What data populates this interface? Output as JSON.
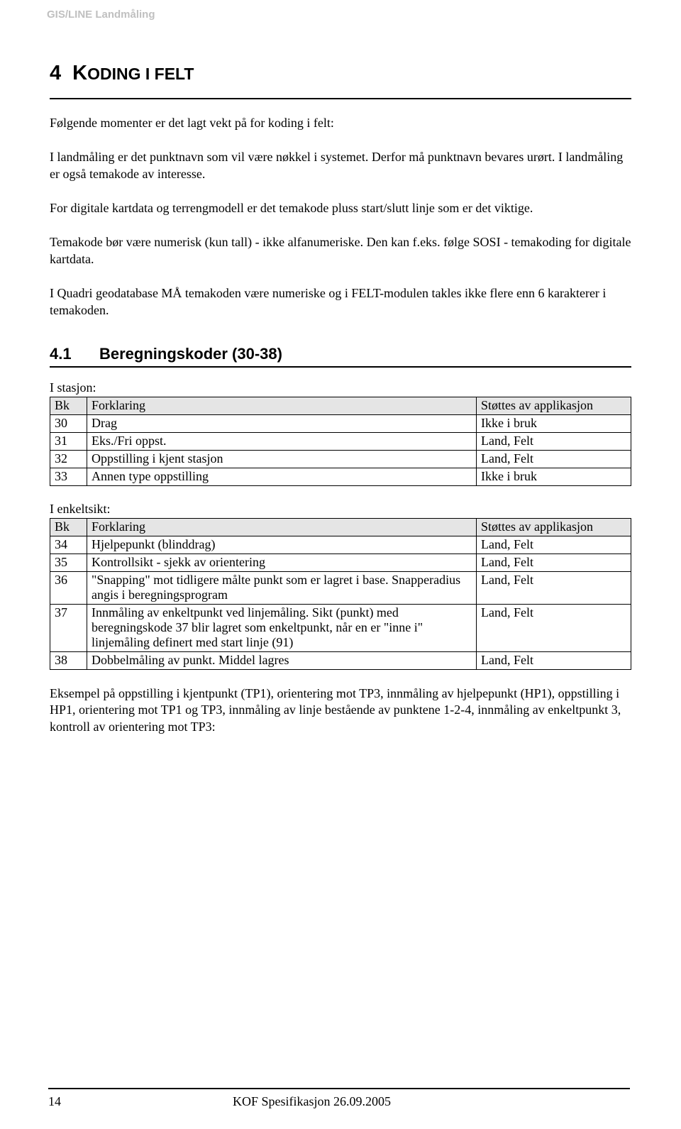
{
  "header": {
    "brand": "GIS/LINE Landmåling"
  },
  "heading": {
    "num": "4",
    "pre": "K",
    "rest": "ODING I FELT"
  },
  "paras": {
    "p1": "Følgende momenter er det lagt vekt på for koding i felt:",
    "p2": "I landmåling er det punktnavn som vil være nøkkel i systemet. Derfor må punktnavn bevares urørt. I landmåling er også temakode av interesse.",
    "p3": "For digitale kartdata og terrengmodell er det temakode pluss start/slutt linje som er det viktige.",
    "p4": "Temakode bør være numerisk (kun tall) - ikke alfanumeriske. Den kan f.eks. følge SOSI - temakoding for digitale kartdata.",
    "p5": "I Quadri geodatabase MÅ temakoden være numeriske og i FELT-modulen takles ikke flere enn 6 karakterer i temakoden."
  },
  "section41": {
    "num": "4.1",
    "title": "Beregningskoder (30-38)"
  },
  "table1": {
    "label": "I stasjon:",
    "headers": {
      "bk": "Bk",
      "forklaring": "Forklaring",
      "app": "Støttes av applikasjon"
    },
    "rows": [
      {
        "bk": "30",
        "forklaring": "Drag",
        "app": "Ikke i bruk"
      },
      {
        "bk": "31",
        "forklaring": "Eks./Fri oppst.",
        "app": "Land, Felt"
      },
      {
        "bk": "32",
        "forklaring": "Oppstilling i kjent stasjon",
        "app": "Land, Felt"
      },
      {
        "bk": "33",
        "forklaring": "Annen type oppstilling",
        "app": "Ikke i bruk"
      }
    ]
  },
  "table2": {
    "label": "I enkeltsikt:",
    "headers": {
      "bk": "Bk",
      "forklaring": "Forklaring",
      "app": "Støttes av applikasjon"
    },
    "rows": [
      {
        "bk": "34",
        "forklaring": "Hjelpepunkt (blinddrag)",
        "app": "Land, Felt"
      },
      {
        "bk": "35",
        "forklaring": "Kontrollsikt - sjekk av orientering",
        "app": "Land, Felt"
      },
      {
        "bk": "36",
        "forklaring": "\"Snapping\" mot tidligere målte punkt som er lagret i base. Snapperadius angis i beregningsprogram",
        "app": "Land, Felt"
      },
      {
        "bk": "37",
        "forklaring": "Innmåling av enkeltpunkt ved linjemåling. Sikt (punkt) med beregningskode 37 blir lagret som enkeltpunkt, når en er \"inne i\" linjemåling definert med start linje (91)",
        "app": "Land, Felt"
      },
      {
        "bk": "38",
        "forklaring": "Dobbelmåling av punkt. Middel lagres",
        "app": "Land, Felt"
      }
    ]
  },
  "paras2": {
    "p6": "Eksempel på oppstilling i kjentpunkt (TP1), orientering mot TP3, innmåling av hjelpepunkt (HP1), oppstilling i HP1, orientering mot TP1 og TP3, innmåling av linje bestående av punktene 1-2-4, innmåling av enkeltpunkt 3, kontroll av orientering mot TP3:"
  },
  "footer": {
    "page": "14",
    "title": "KOF Spesifikasjon  26.09.2005"
  }
}
